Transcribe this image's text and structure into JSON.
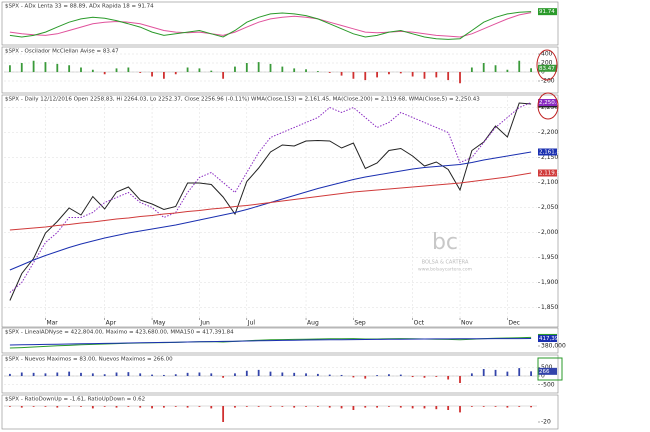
{
  "chart_data": [
    {
      "type": "line",
      "title": "$SPX - ADx Lenta 33 = 88.89, ADx Rapida 18 = 91.74",
      "ylim": [
        0,
        100
      ],
      "series": [
        {
          "color": "#e0529c",
          "values": [
            30,
            25,
            22,
            20,
            25,
            35,
            45,
            55,
            60,
            62,
            60,
            55,
            45,
            35,
            30,
            28,
            30,
            25,
            20,
            30,
            45,
            60,
            70,
            75,
            78,
            75,
            70,
            60,
            50,
            40,
            30,
            28,
            30,
            32,
            30,
            25,
            20,
            18,
            15,
            25,
            40,
            55,
            70,
            82,
            89
          ]
        },
        {
          "color": "#2a9a2a",
          "badge": "91.74",
          "values": [
            20,
            15,
            20,
            30,
            45,
            60,
            70,
            75,
            72,
            65,
            55,
            45,
            30,
            20,
            25,
            30,
            35,
            25,
            15,
            35,
            60,
            75,
            85,
            88,
            85,
            80,
            70,
            55,
            40,
            25,
            15,
            20,
            30,
            35,
            25,
            15,
            10,
            8,
            10,
            35,
            60,
            75,
            85,
            90,
            92
          ]
        }
      ]
    },
    {
      "type": "bar",
      "title": "$SPX - Oscilador McClellan Avise = 83.47",
      "ylim": [
        -400,
        400
      ],
      "yticks": [
        -200,
        0,
        200,
        400
      ],
      "grid": true,
      "series": [
        {
          "color": "#3a9a3a",
          "negative_color": "#d03030",
          "badge": "83.47",
          "values": [
            150,
            200,
            250,
            220,
            180,
            150,
            100,
            50,
            -50,
            80,
            100,
            -20,
            -100,
            -150,
            -50,
            100,
            80,
            30,
            -150,
            120,
            200,
            220,
            180,
            120,
            80,
            60,
            20,
            -20,
            -80,
            -150,
            -180,
            -120,
            -50,
            -30,
            -100,
            -150,
            -120,
            -180,
            -250,
            100,
            200,
            150,
            50,
            250,
            83
          ]
        }
      ]
    },
    {
      "type": "line",
      "title": "$SPX - Daily 12/12/2016 Open 2258.83, Hi 2264.03, Lo 2252.37, Close 2256.96 (-0.11%) WMA(Close,153) = 2,161.45, MA(Close,200) = 2,119.68, WMA(Close,5) = 2,250.43",
      "categories": [
        null,
        null,
        null,
        "Mar",
        null,
        null,
        null,
        null,
        "Apr",
        null,
        null,
        null,
        "May",
        null,
        null,
        null,
        "Jun",
        null,
        null,
        null,
        "Jul",
        null,
        null,
        null,
        null,
        "Aug",
        null,
        null,
        null,
        "Sep",
        null,
        null,
        null,
        null,
        "Oct",
        null,
        null,
        null,
        "Nov",
        null,
        null,
        null,
        "Dec",
        null,
        null
      ],
      "ylim": [
        1829,
        2273
      ],
      "grid": true,
      "yticks": [
        {
          "value": 1850,
          "label": "1,850"
        },
        {
          "value": 1900,
          "label": "1,900"
        },
        {
          "value": 1950,
          "label": "1,950"
        },
        {
          "value": 2000,
          "label": "2,000"
        },
        {
          "value": 2050,
          "label": "2,050"
        },
        {
          "value": 2100,
          "label": "2,100"
        },
        {
          "value": 2150,
          "label": "2,150"
        },
        {
          "value": 2200,
          "label": "2,200"
        },
        {
          "value": 2250,
          "label": "2,250"
        }
      ],
      "series": [
        {
          "color": "#222222",
          "badge": "2,256.96",
          "values": [
            1864,
            1918,
            1948,
            1999,
            2022,
            2049,
            2035,
            2072,
            2047,
            2081,
            2091,
            2065,
            2057,
            2046,
            2052,
            2099,
            2099,
            2096,
            2071,
            2037,
            2102,
            2129,
            2161,
            2175,
            2173,
            2183,
            2184,
            2183,
            2169,
            2179,
            2128,
            2139,
            2164,
            2168,
            2153,
            2133,
            2141,
            2126,
            2085,
            2164,
            2181,
            2213,
            2191,
            2259,
            2257
          ]
        },
        {
          "color": "#8a2bc2",
          "dashed": true,
          "badge": "2,250.43",
          "values": [
            1880,
            1900,
            1940,
            1980,
            2000,
            2030,
            2030,
            2040,
            2060,
            2070,
            2080,
            2060,
            2050,
            2030,
            2040,
            2080,
            2110,
            2120,
            2100,
            2080,
            2120,
            2160,
            2190,
            2200,
            2210,
            2220,
            2230,
            2250,
            2240,
            2250,
            2230,
            2210,
            2220,
            2240,
            2230,
            2220,
            2210,
            2200,
            2140,
            2150,
            2180,
            2210,
            2230,
            2250,
            2260
          ]
        },
        {
          "color": "#1a2fb0",
          "badge": "2,161.45",
          "values": [
            1925,
            1935,
            1945,
            1954,
            1962,
            1970,
            1977,
            1983,
            1989,
            1994,
            1999,
            2003,
            2007,
            2011,
            2015,
            2020,
            2025,
            2030,
            2035,
            2040,
            2046,
            2053,
            2060,
            2067,
            2074,
            2081,
            2088,
            2094,
            2100,
            2106,
            2111,
            2115,
            2119,
            2123,
            2127,
            2130,
            2132,
            2134,
            2136,
            2140,
            2145,
            2149,
            2153,
            2157,
            2161
          ]
        },
        {
          "color": "#d03a3a",
          "badge": "2,119.68",
          "values": [
            2005,
            2007,
            2009,
            2011,
            2014,
            2016,
            2019,
            2021,
            2024,
            2027,
            2029,
            2032,
            2034,
            2037,
            2039,
            2042,
            2044,
            2047,
            2049,
            2052,
            2054,
            2057,
            2060,
            2063,
            2066,
            2069,
            2072,
            2075,
            2078,
            2081,
            2083,
            2085,
            2087,
            2089,
            2091,
            2093,
            2095,
            2097,
            2099,
            2102,
            2105,
            2108,
            2111,
            2115,
            2119
          ]
        }
      ]
    },
    {
      "type": "line",
      "title": "$SPX - LinealADNyse = 422,804.00, Maximo = 423,680.00, MMA150 = 417,391.84",
      "ylim": [
        360000,
        435000
      ],
      "yticks": [
        {
          "value": 380000,
          "label": "380,000"
        }
      ],
      "series": [
        {
          "color": "#2a9a2a",
          "badge": "422,804",
          "values": [
            370000,
            372000,
            375000,
            378000,
            381000,
            383000,
            386000,
            388000,
            390000,
            392000,
            394000,
            395000,
            396000,
            397000,
            398000,
            400000,
            401000,
            402000,
            400000,
            403000,
            406000,
            409000,
            411000,
            412000,
            413000,
            414000,
            415000,
            416000,
            416000,
            417000,
            415000,
            415000,
            416000,
            417000,
            416000,
            415000,
            414000,
            413000,
            411000,
            414000,
            417000,
            419000,
            420000,
            421000,
            422804
          ]
        },
        {
          "color": "#1a2fb0",
          "badge": "417,392",
          "values": [
            385000,
            386000,
            387000,
            388000,
            389000,
            390000,
            391000,
            392000,
            393000,
            394000,
            395000,
            396000,
            397000,
            398000,
            399000,
            400000,
            401000,
            402000,
            403000,
            404000,
            405000,
            406000,
            407000,
            408000,
            409000,
            410000,
            410500,
            411000,
            411500,
            412000,
            412500,
            413000,
            413500,
            414000,
            414500,
            415000,
            415300,
            415600,
            415900,
            416200,
            416500,
            416800,
            417000,
            417200,
            417392
          ]
        }
      ]
    },
    {
      "type": "bar",
      "title": "$SPX - Nuevos Maximos = 83.00, Nuevos Maximos = 266.00",
      "ylim": [
        -800,
        800
      ],
      "yticks": [
        -500,
        0,
        500
      ],
      "grid": true,
      "series": [
        {
          "color": "#3344aa",
          "negative_color": "#d03030",
          "badge": "266",
          "values": [
            120,
            200,
            180,
            150,
            200,
            250,
            180,
            150,
            100,
            200,
            220,
            150,
            80,
            60,
            100,
            180,
            200,
            150,
            -100,
            150,
            300,
            350,
            250,
            200,
            180,
            150,
            120,
            80,
            60,
            -80,
            -150,
            50,
            100,
            80,
            -60,
            -100,
            -50,
            -200,
            -400,
            150,
            400,
            350,
            250,
            450,
            266
          ]
        }
      ]
    },
    {
      "type": "bar",
      "title": "$SPX - RatioDownUp = -1.61, RatioUpDown = 0.62",
      "ylim": [
        -25,
        5
      ],
      "yticks": [
        -20
      ],
      "series": [
        {
          "color": "#3344aa",
          "negative_color": "#d03030",
          "values": [
            -1,
            -2,
            -1,
            -1,
            -2,
            -1,
            -1,
            -3,
            -1,
            -2,
            -1,
            -2,
            -3,
            -2,
            -1,
            -2,
            -1,
            -3,
            -20,
            -2,
            -1,
            -1,
            -1,
            -1,
            -2,
            -1,
            -1,
            -2,
            -3,
            -5,
            -2,
            -2,
            -1,
            -2,
            -3,
            -3,
            -4,
            -5,
            -8,
            -1,
            -1,
            -1,
            -2,
            -1,
            -1.61
          ]
        }
      ]
    }
  ],
  "watermark": {
    "logo": "bc",
    "name": "BOLSA & CARTERA",
    "url": "www.bolsaycartera.com"
  }
}
